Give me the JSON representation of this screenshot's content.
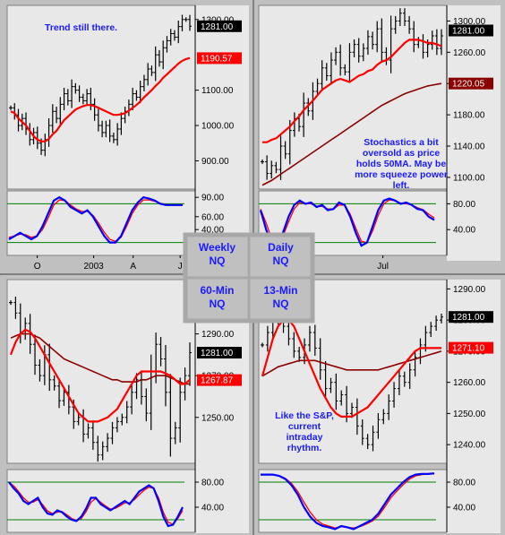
{
  "colors": {
    "plot_bg": "#e8e8e8",
    "frame": "#c0c0c0",
    "price": "#000000",
    "ma_fast": "#ff0000",
    "ma_slow": "#8b0000",
    "stoch_k": "#0000ff",
    "stoch_d": "#ff0000",
    "stoch_ref": "#008000",
    "annotation": "#1a1aff",
    "tag_black": "#000000",
    "tag_red": "#ff0000",
    "tag_darkred": "#8b0000"
  },
  "labels": {
    "grid": [
      [
        "Weekly",
        "NQ"
      ],
      [
        "Daily",
        "NQ"
      ],
      [
        "60-Min",
        "NQ"
      ],
      [
        "13-Min",
        "NQ"
      ]
    ]
  },
  "chart_data": [
    {
      "id": "weekly",
      "type": "line",
      "annotation": "Trend still there.",
      "price_ticks": [
        "1300.00",
        "1100.00",
        "1000.00",
        "900.00"
      ],
      "osc_ticks": [
        "90.00",
        "60.00",
        "40.00"
      ],
      "x_labels": [
        "O",
        "2003",
        "A",
        "J"
      ],
      "price_tags": [
        {
          "text": "1281.00",
          "style": "black"
        },
        {
          "text": "1190.57",
          "style": "red"
        }
      ],
      "ylim": [
        820,
        1340
      ],
      "price": [
        1050,
        1030,
        1000,
        1020,
        990,
        960,
        980,
        950,
        930,
        960,
        1000,
        1040,
        1020,
        1060,
        1090,
        1070,
        1110,
        1100,
        1080,
        1070,
        1090,
        1060,
        1030,
        1000,
        980,
        1000,
        970,
        960,
        990,
        1020,
        1040,
        1060,
        1090,
        1080,
        1110,
        1130,
        1160,
        1150,
        1200,
        1180,
        1220,
        1240,
        1260,
        1250,
        1280,
        1300,
        1300,
        1281
      ],
      "ma_fast": [
        1040,
        1035,
        1020,
        1010,
        1000,
        985,
        970,
        960,
        955,
        955,
        962,
        975,
        985,
        1000,
        1015,
        1025,
        1035,
        1045,
        1050,
        1055,
        1058,
        1058,
        1055,
        1050,
        1045,
        1040,
        1035,
        1030,
        1030,
        1032,
        1035,
        1042,
        1050,
        1058,
        1068,
        1080,
        1090,
        1100,
        1112,
        1122,
        1135,
        1145,
        1155,
        1165,
        1175,
        1183,
        1188,
        1191
      ],
      "ma_slow": [],
      "osc_ylim": [
        0,
        100
      ],
      "stoch_k": [
        25,
        30,
        35,
        30,
        25,
        30,
        45,
        65,
        85,
        90,
        85,
        75,
        70,
        65,
        70,
        60,
        45,
        30,
        20,
        20,
        30,
        50,
        70,
        82,
        90,
        88,
        85,
        80,
        78,
        78,
        78,
        78
      ],
      "stoch_d": [
        28,
        30,
        33,
        32,
        28,
        30,
        40,
        58,
        78,
        86,
        85,
        78,
        72,
        68,
        68,
        62,
        50,
        36,
        25,
        22,
        28,
        45,
        65,
        78,
        86,
        86,
        84,
        81,
        79,
        78,
        78,
        78
      ],
      "osc_refs": [
        80,
        20
      ]
    },
    {
      "id": "daily",
      "type": "line",
      "annotation": "Stochastics a bit oversold as price holds 50MA. May be more squeeze power left.",
      "price_ticks": [
        "1300.00",
        "1260.00",
        "1220.00",
        "1180.00",
        "1140.00",
        "1100.00"
      ],
      "osc_ticks": [
        "80.00",
        "40.00"
      ],
      "x_labels": [
        "Jul"
      ],
      "price_tags": [
        {
          "text": "1281.00",
          "style": "black"
        },
        {
          "text": "1220.05",
          "style": "darkred"
        }
      ],
      "ylim": [
        1085,
        1320
      ],
      "price": [
        1120,
        1105,
        1115,
        1110,
        1140,
        1130,
        1160,
        1175,
        1165,
        1195,
        1185,
        1210,
        1220,
        1240,
        1230,
        1250,
        1260,
        1240,
        1235,
        1260,
        1270,
        1255,
        1265,
        1280,
        1270,
        1290,
        1260,
        1250,
        1290,
        1300,
        1310,
        1300,
        1290,
        1270,
        1275,
        1260,
        1270,
        1281,
        1265,
        1281
      ],
      "ma_fast": [
        1145,
        1145,
        1148,
        1150,
        1155,
        1160,
        1165,
        1172,
        1178,
        1186,
        1192,
        1198,
        1205,
        1212,
        1216,
        1220,
        1224,
        1226,
        1224,
        1222,
        1226,
        1230,
        1232,
        1236,
        1238,
        1244,
        1248,
        1250,
        1254,
        1260,
        1266,
        1272,
        1276,
        1276,
        1276,
        1274,
        1272,
        1272,
        1270,
        1268
      ],
      "ma_slow": [
        1090,
        1093,
        1096,
        1100,
        1104,
        1108,
        1112,
        1116,
        1120,
        1124,
        1128,
        1132,
        1136,
        1140,
        1144,
        1148,
        1152,
        1156,
        1160,
        1164,
        1168,
        1172,
        1176,
        1180,
        1184,
        1188,
        1192,
        1195,
        1198,
        1201,
        1204,
        1207,
        1209,
        1211,
        1213,
        1215,
        1217,
        1218,
        1219,
        1220
      ],
      "osc_ylim": [
        0,
        100
      ],
      "stoch_k": [
        70,
        40,
        15,
        15,
        35,
        60,
        78,
        85,
        80,
        82,
        75,
        78,
        70,
        72,
        82,
        78,
        60,
        35,
        15,
        20,
        45,
        70,
        85,
        88,
        85,
        80,
        82,
        78,
        72,
        70,
        60,
        55
      ],
      "stoch_d": [
        72,
        50,
        25,
        18,
        30,
        52,
        72,
        82,
        80,
        80,
        76,
        76,
        72,
        72,
        78,
        78,
        64,
        42,
        22,
        20,
        38,
        62,
        80,
        86,
        85,
        81,
        80,
        78,
        74,
        71,
        64,
        58
      ],
      "osc_refs": [
        80,
        20
      ]
    },
    {
      "id": "60min",
      "type": "line",
      "annotation": "",
      "price_ticks": [
        "1290.00",
        "1270.00",
        "1250.00"
      ],
      "osc_ticks": [
        "80.00",
        "40.00"
      ],
      "x_labels": [],
      "price_tags": [
        {
          "text": "1281.00",
          "style": "black"
        },
        {
          "text": "1267.87",
          "style": "red"
        }
      ],
      "ylim": [
        1228,
        1316
      ],
      "price": [
        1305,
        1300,
        1290,
        1295,
        1285,
        1275,
        1270,
        1280,
        1268,
        1265,
        1258,
        1262,
        1255,
        1248,
        1250,
        1242,
        1245,
        1238,
        1232,
        1236,
        1240,
        1245,
        1248,
        1250,
        1255,
        1262,
        1268,
        1260,
        1252,
        1272,
        1285,
        1278,
        1262,
        1240,
        1245,
        1262,
        1270,
        1281
      ],
      "ma_fast": [
        1280,
        1286,
        1290,
        1292,
        1291,
        1288,
        1284,
        1280,
        1276,
        1272,
        1268,
        1264,
        1260,
        1256,
        1252,
        1250,
        1248,
        1248,
        1248,
        1249,
        1250,
        1252,
        1254,
        1258,
        1262,
        1266,
        1270,
        1272,
        1272,
        1272,
        1272,
        1272,
        1271,
        1270,
        1268,
        1266,
        1266,
        1268
      ],
      "ma_slow": [
        1288,
        1289,
        1290,
        1290,
        1290,
        1289,
        1288,
        1286,
        1284,
        1282,
        1280,
        1278,
        1277,
        1276,
        1275,
        1274,
        1273,
        1272,
        1271,
        1270,
        1269,
        1268,
        1268,
        1267,
        1267,
        1267,
        1267,
        1268,
        1268,
        1269,
        1270,
        1270,
        1270,
        1269,
        1268,
        1267,
        1266,
        1266
      ],
      "osc_ylim": [
        0,
        100
      ],
      "stoch_k": [
        80,
        70,
        62,
        50,
        45,
        50,
        55,
        40,
        30,
        28,
        35,
        32,
        25,
        20,
        18,
        25,
        38,
        55,
        55,
        45,
        40,
        35,
        40,
        45,
        50,
        45,
        55,
        65,
        70,
        75,
        70,
        50,
        25,
        10,
        12,
        25,
        40
      ],
      "stoch_d": [
        80,
        74,
        65,
        55,
        48,
        48,
        52,
        44,
        34,
        30,
        32,
        33,
        28,
        22,
        19,
        22,
        33,
        48,
        54,
        48,
        42,
        37,
        38,
        42,
        47,
        47,
        52,
        60,
        67,
        72,
        70,
        55,
        32,
        16,
        13,
        22,
        35
      ],
      "osc_refs": [
        80,
        20
      ]
    },
    {
      "id": "13min",
      "type": "line",
      "annotation": "Like the S&P, current intraday rhythm.",
      "price_ticks": [
        "1290.00",
        "1280.00",
        "1270.00",
        "1260.00",
        "1250.00",
        "1240.00"
      ],
      "osc_ticks": [
        "80.00",
        "40.00"
      ],
      "x_labels": [],
      "price_tags": [
        {
          "text": "1281.00",
          "style": "black"
        },
        {
          "text": "1271.10",
          "style": "red"
        }
      ],
      "ylim": [
        1234,
        1293
      ],
      "price": [
        1272,
        1276,
        1280,
        1282,
        1278,
        1274,
        1270,
        1268,
        1272,
        1276,
        1271,
        1264,
        1258,
        1260,
        1254,
        1256,
        1250,
        1252,
        1246,
        1242,
        1240,
        1244,
        1248,
        1250,
        1254,
        1258,
        1262,
        1260,
        1264,
        1268,
        1272,
        1276,
        1278,
        1280,
        1281
      ],
      "ma_fast": [
        1262,
        1268,
        1274,
        1278,
        1280,
        1280,
        1278,
        1274,
        1270,
        1266,
        1262,
        1258,
        1255,
        1252,
        1250,
        1249,
        1249,
        1249,
        1250,
        1251,
        1252,
        1254,
        1256,
        1258,
        1260,
        1262,
        1264,
        1266,
        1268,
        1270,
        1271,
        1271,
        1271,
        1271,
        1271
      ],
      "ma_slow": [
        1262,
        1263,
        1264,
        1265,
        1265.5,
        1266,
        1266.5,
        1267,
        1267,
        1267,
        1267,
        1266.5,
        1266,
        1265.5,
        1265,
        1264.5,
        1264,
        1264,
        1264,
        1264,
        1264,
        1264,
        1264,
        1264.5,
        1265,
        1265.5,
        1266,
        1266.5,
        1267,
        1267.5,
        1268,
        1268.5,
        1269,
        1269.5,
        1270
      ],
      "osc_ylim": [
        0,
        100
      ],
      "stoch_k": [
        92,
        92,
        92,
        90,
        85,
        75,
        60,
        40,
        25,
        15,
        10,
        8,
        5,
        10,
        8,
        5,
        10,
        15,
        20,
        30,
        45,
        60,
        70,
        80,
        88,
        92,
        93,
        93,
        94
      ],
      "stoch_d": [
        92,
        92,
        92,
        90,
        86,
        78,
        65,
        48,
        32,
        20,
        13,
        10,
        7,
        9,
        8,
        7,
        9,
        13,
        18,
        26,
        40,
        55,
        66,
        76,
        85,
        90,
        92,
        93,
        93
      ],
      "osc_refs": [
        80,
        20
      ]
    }
  ]
}
